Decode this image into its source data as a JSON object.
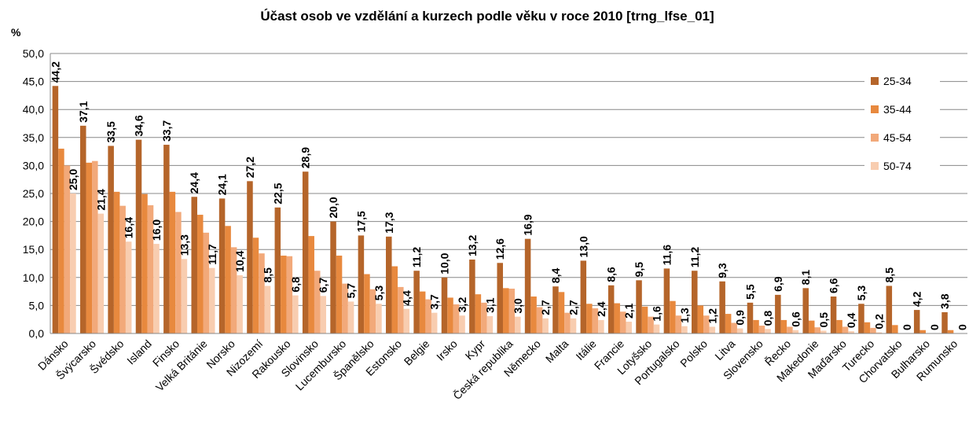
{
  "chart_data": {
    "type": "bar",
    "title": "Účast osob ve vzdělání a kurzech podle věku v roce 2010 [trng_lfse_01]",
    "y_label": "%",
    "categories": [
      "Dánsko",
      "Švýcarsko",
      "Švédsko",
      "Island",
      "Finsko",
      "Velká Británie",
      "Norsko",
      "Nizozemí",
      "Rakousko",
      "Slovinsko",
      "Lucembursko",
      "Španělsko",
      "Estonsko",
      "Belgie",
      "Irsko",
      "Kypr",
      "Česká republika",
      "Německo",
      "Malta",
      "Itálie",
      "Francie",
      "Lotyšsko",
      "Portugalsko",
      "Polsko",
      "Litva",
      "Slovensko",
      "Řecko",
      "Makedonie",
      "Maďarsko",
      "Turecko",
      "Chorvatsko",
      "Bulharsko",
      "Rumunsko"
    ],
    "series": [
      {
        "name": "25-34",
        "color": "#b5652a",
        "values": [
          44.2,
          37.1,
          33.5,
          34.6,
          33.7,
          24.4,
          24.1,
          27.2,
          22.5,
          28.9,
          20.0,
          17.5,
          17.3,
          11.2,
          10.0,
          13.2,
          12.6,
          16.9,
          8.4,
          13.0,
          8.6,
          9.5,
          11.6,
          11.2,
          9.3,
          5.5,
          6.9,
          8.1,
          6.6,
          5.3,
          8.5,
          4.2,
          3.8
        ],
        "value_labels": [
          "44,2",
          "37,1",
          "33,5",
          "34,6",
          "33,7",
          "24,4",
          "24,1",
          "27,2",
          "22,5",
          "28,9",
          "20,0",
          "17,5",
          "17,3",
          "11,2",
          "10,0",
          "13,2",
          "12,6",
          "16,9",
          "8,4",
          "13,0",
          "8,6",
          "9,5",
          "11,6",
          "11,2",
          "9,3",
          "5,5",
          "6,9",
          "8,1",
          "6,6",
          "5,3",
          "8,5",
          "4,2",
          "3,8"
        ]
      },
      {
        "name": "35-44",
        "color": "#e8893e",
        "values": [
          33.0,
          30.5,
          25.3,
          24.9,
          25.3,
          21.2,
          19.2,
          17.1,
          13.9,
          17.4,
          13.9,
          10.6,
          12.0,
          7.5,
          6.4,
          7.0,
          8.1,
          6.6,
          7.4,
          5.3,
          5.4,
          4.8,
          5.8,
          5.0,
          3.5,
          2.4,
          2.4,
          2.3,
          2.4,
          2.0,
          1.5,
          0.6,
          0.6
        ]
      },
      {
        "name": "45-54",
        "color": "#f2a97a",
        "values": [
          30.0,
          30.8,
          22.8,
          22.9,
          21.7,
          18.0,
          15.4,
          14.3,
          13.8,
          11.2,
          8.9,
          7.9,
          8.3,
          6.1,
          5.2,
          5.5,
          8.0,
          4.7,
          3.7,
          4.5,
          3.9,
          3.0,
          3.2,
          3.2,
          1.9,
          1.4,
          1.2,
          1.1,
          1.2,
          1.0,
          0,
          0,
          0
        ]
      },
      {
        "name": "50-74",
        "color": "#f8cdb0",
        "values": [
          25.0,
          21.4,
          16.4,
          16.0,
          13.3,
          11.7,
          10.4,
          8.5,
          6.8,
          6.7,
          5.7,
          5.3,
          4.4,
          3.7,
          3.2,
          3.1,
          3.0,
          2.7,
          2.7,
          2.4,
          2.1,
          1.6,
          1.3,
          1.2,
          0.9,
          0.8,
          0.6,
          0.5,
          0.4,
          0.2,
          0,
          0,
          0
        ],
        "value_labels": [
          "25,0",
          "21,4",
          "16,4",
          "16,0",
          "13,3",
          "11,7",
          "10,4",
          "8,5",
          "6,8",
          "6,7",
          "5,7",
          "5,3",
          "4,4",
          "3,7",
          "3,2",
          "3,1",
          "3,0",
          "2,7",
          "2,7",
          "2,4",
          "2,1",
          "1,6",
          "1,3",
          "1,2",
          "0,9",
          "0,8",
          "0,6",
          "0,5",
          "0,4",
          "0,2",
          "0",
          "0",
          "0"
        ]
      }
    ],
    "ylim": [
      0,
      50
    ],
    "yticks": [
      {
        "value": 0,
        "label": "0,0"
      },
      {
        "value": 5,
        "label": "5,0"
      },
      {
        "value": 10,
        "label": "10,0"
      },
      {
        "value": 15,
        "label": "15,0"
      },
      {
        "value": 20,
        "label": "20,0"
      },
      {
        "value": 25,
        "label": "25,0"
      },
      {
        "value": 30,
        "label": "30,0"
      },
      {
        "value": 35,
        "label": "35,0"
      },
      {
        "value": 40,
        "label": "40,0"
      },
      {
        "value": 45,
        "label": "45,0"
      },
      {
        "value": 50,
        "label": "50,0"
      }
    ],
    "grid": true,
    "legend": "right"
  }
}
